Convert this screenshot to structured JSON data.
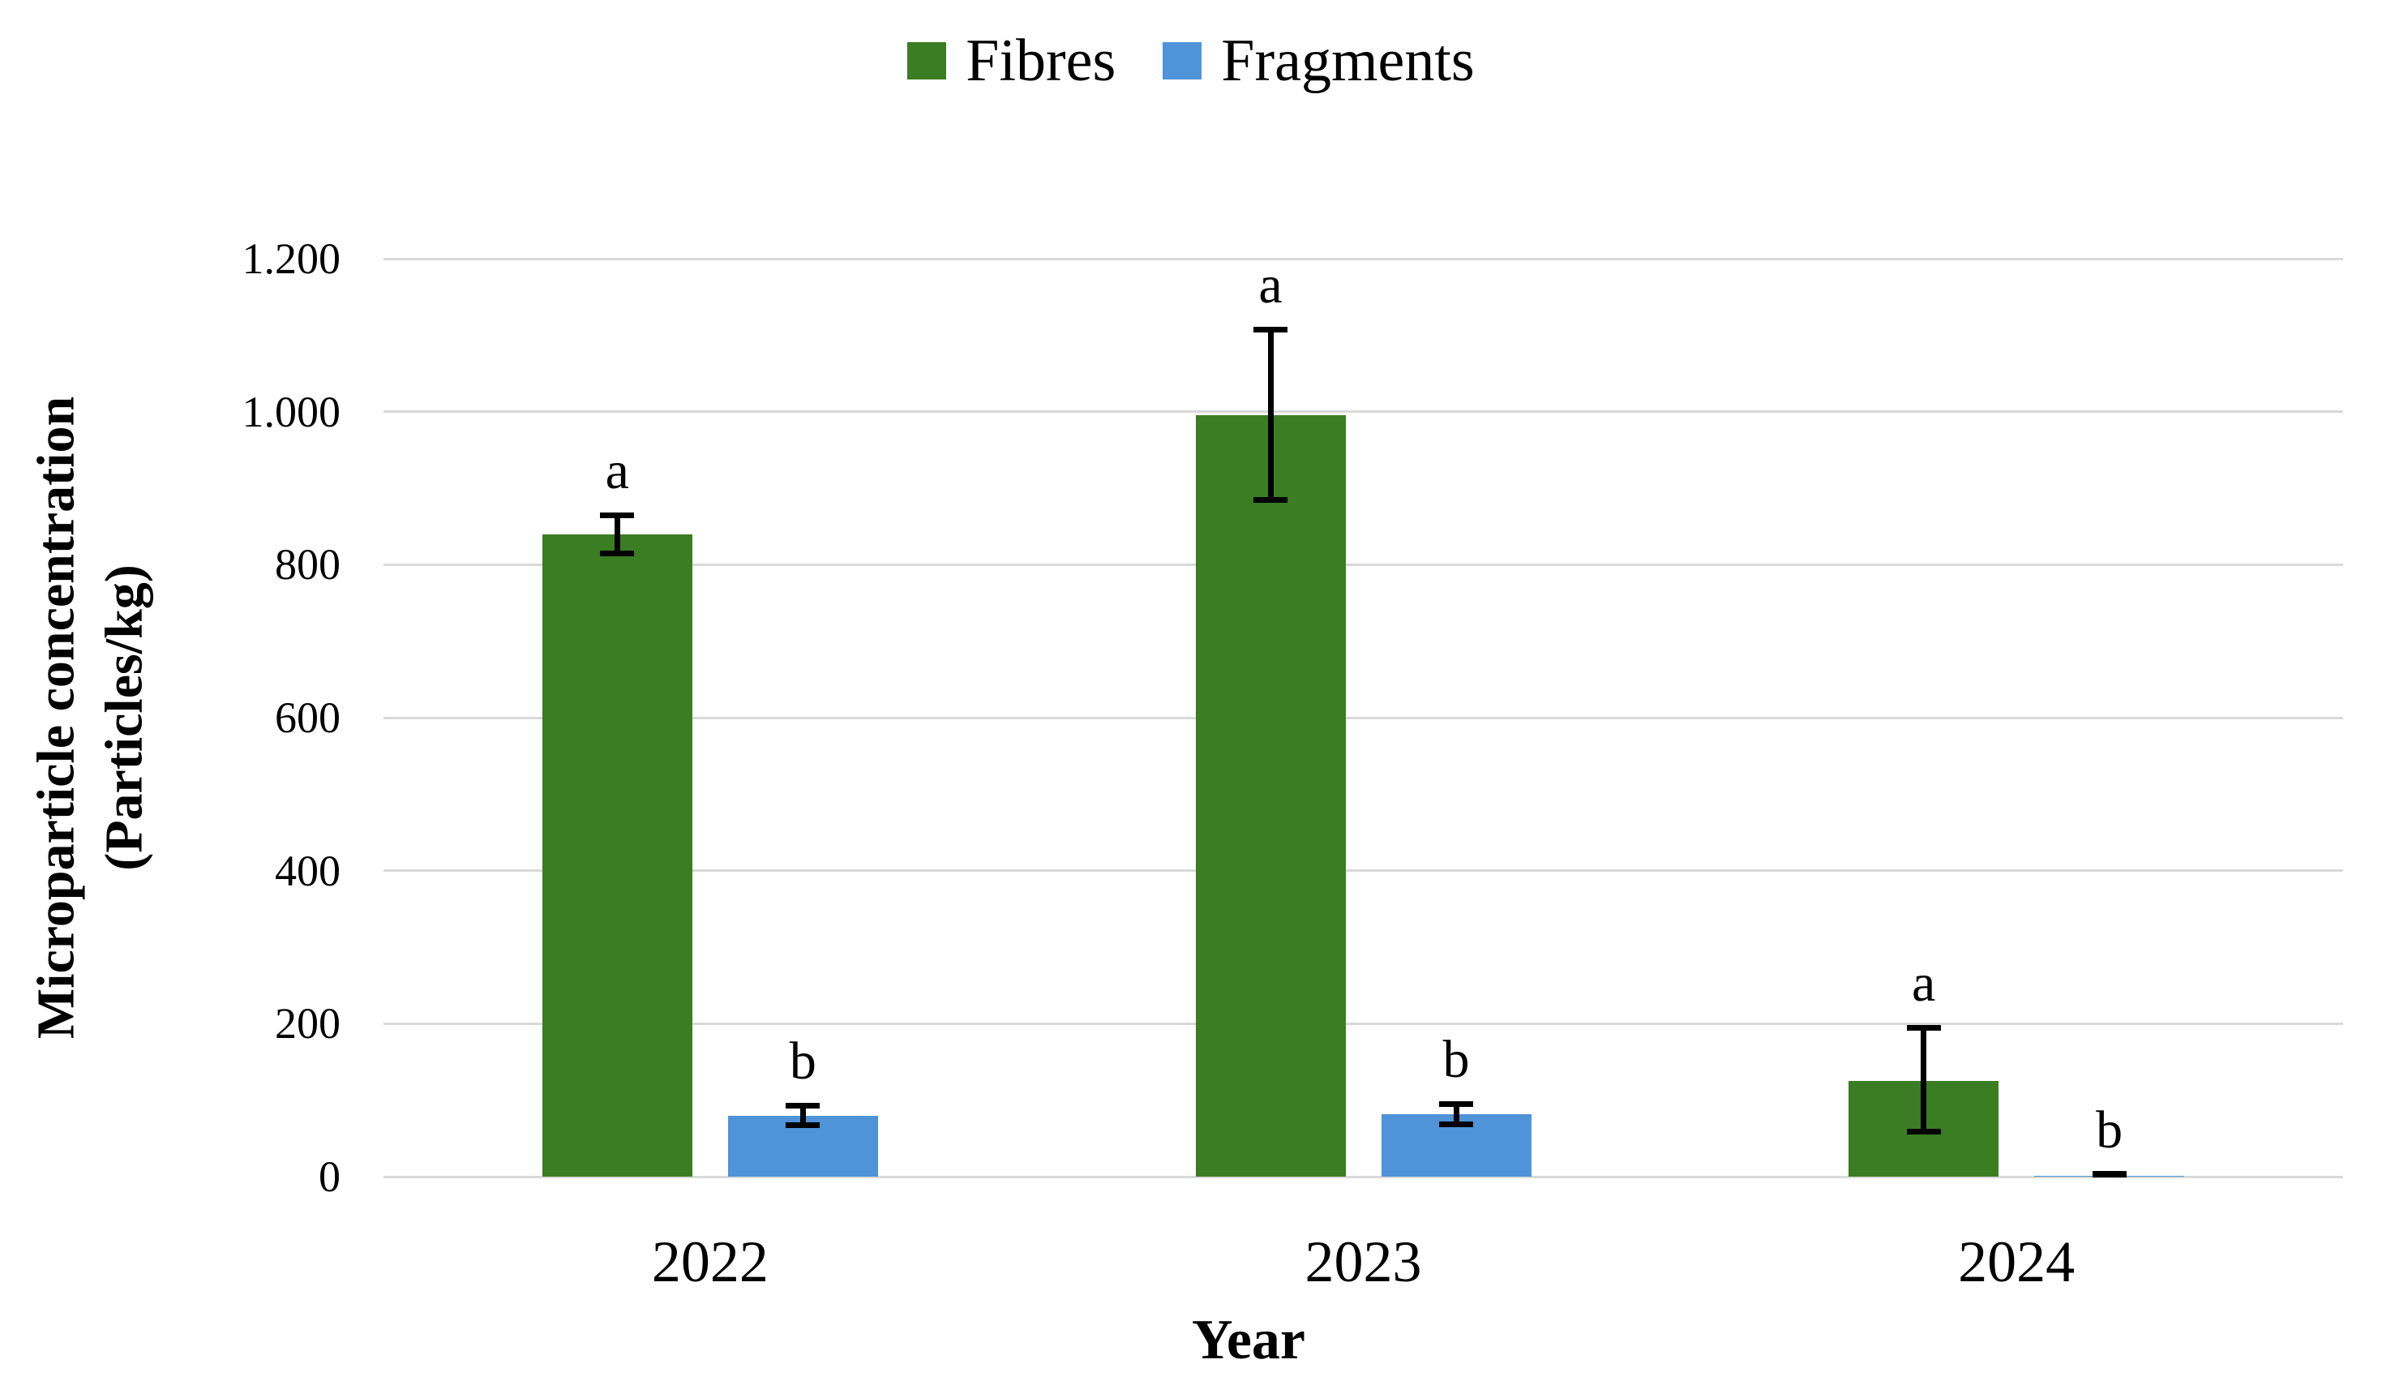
{
  "chart_data": {
    "type": "bar",
    "title": "",
    "categories": [
      "2022",
      "2023",
      "2024"
    ],
    "series": [
      {
        "name": "Fibres",
        "color": "#3A7D22",
        "values": [
          840,
          995,
          125
        ],
        "error_plus": [
          25,
          113,
          70
        ],
        "error_minus": [
          25,
          110,
          66
        ],
        "sig_labels": [
          "a",
          "a",
          "a"
        ]
      },
      {
        "name": "Fragments",
        "color": "#4F93D8",
        "values": [
          80,
          82,
          1
        ],
        "error_plus": [
          13,
          13,
          2
        ],
        "error_minus": [
          12,
          13,
          1
        ],
        "sig_labels": [
          "b",
          "b",
          "b"
        ]
      }
    ],
    "xlabel": "Year",
    "ylabel": "Microparticle concentration (Particles/kg)",
    "ylabel_lines": [
      "Microparticle concentration",
      "(Particles/kg)"
    ],
    "ylim": [
      0,
      1200
    ],
    "ytick_step": 200,
    "ytick_labels": [
      "0",
      "200",
      "400",
      "600",
      "800",
      "1.000",
      "1.200"
    ],
    "grid": true,
    "legend_position": "top-center"
  },
  "colors": {
    "grid": "#D9D9D9",
    "text": "#000000",
    "background": "#FFFFFF"
  }
}
